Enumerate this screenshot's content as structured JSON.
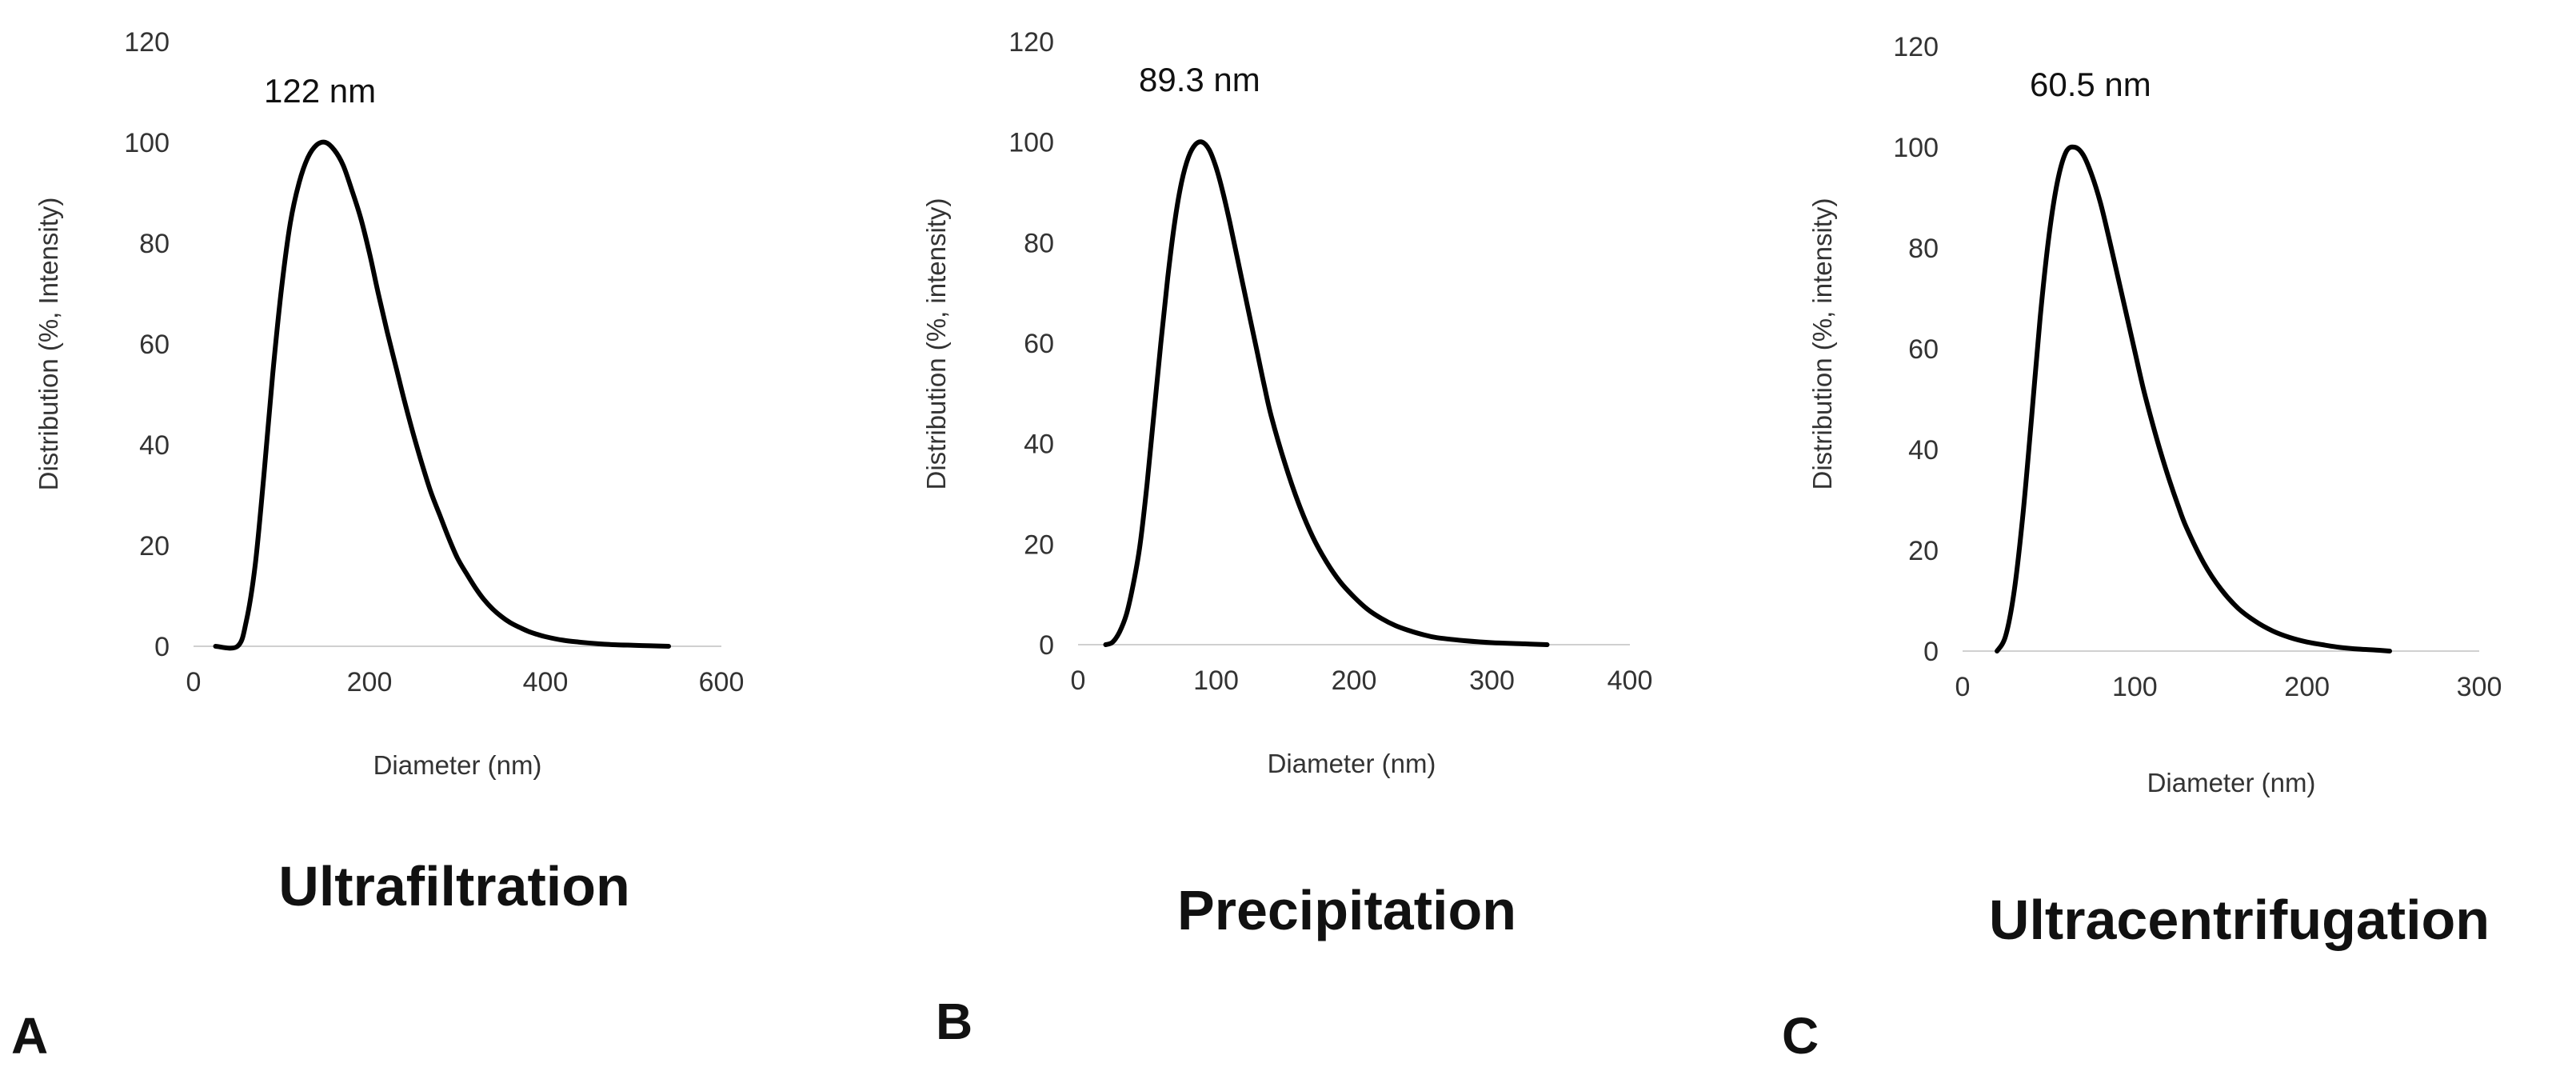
{
  "chart_data": [
    {
      "type": "line",
      "panel_label": "A",
      "method": "Ultrafiltration",
      "annotation": "122 nm",
      "xlabel": "Diameter (nm)",
      "ylabel": "Distribution (%, Intensity)",
      "xlim": [
        0,
        600
      ],
      "ylim": [
        0,
        120
      ],
      "xticks": [
        0,
        200,
        400,
        600
      ],
      "yticks": [
        0,
        20,
        40,
        60,
        80,
        100,
        120
      ],
      "grid": false,
      "series": [
        {
          "x": [
            25,
            50,
            60,
            70,
            80,
            90,
            100,
            110,
            120,
            130,
            140,
            150,
            160,
            170,
            180,
            190,
            200,
            210,
            220,
            230,
            240,
            250,
            260,
            270,
            280,
            290,
            300,
            310,
            320,
            330,
            340,
            350,
            360,
            370,
            380,
            390,
            400,
            420,
            440,
            460,
            480,
            500,
            520,
            540
          ],
          "y": [
            0,
            0,
            5,
            16,
            34,
            54,
            71,
            84,
            92,
            97,
            99.5,
            100,
            98.5,
            95.5,
            90.5,
            85,
            78,
            70,
            62.5,
            55.5,
            48.5,
            42,
            36,
            30.5,
            26,
            21.5,
            17.5,
            14.5,
            11.7,
            9.3,
            7.4,
            5.9,
            4.7,
            3.8,
            3.0,
            2.4,
            1.9,
            1.2,
            0.8,
            0.5,
            0.3,
            0.2,
            0.1,
            0
          ]
        }
      ]
    },
    {
      "type": "line",
      "panel_label": "B",
      "method": "Precipitation",
      "annotation": "89.3 nm",
      "xlabel": "Diameter (nm)",
      "ylabel": "Distribution (%, intensity)",
      "xlim": [
        0,
        400
      ],
      "ylim": [
        0,
        120
      ],
      "xticks": [
        0,
        100,
        200,
        300,
        400
      ],
      "yticks": [
        0,
        20,
        40,
        60,
        80,
        100,
        120
      ],
      "grid": false,
      "series": [
        {
          "x": [
            20,
            25,
            30,
            35,
            40,
            45,
            50,
            55,
            60,
            65,
            70,
            75,
            80,
            85,
            90,
            95,
            100,
            105,
            110,
            115,
            120,
            125,
            130,
            135,
            140,
            150,
            160,
            170,
            180,
            190,
            200,
            210,
            220,
            230,
            240,
            250,
            260,
            280,
            300,
            320,
            340
          ],
          "y": [
            0,
            0.5,
            2.5,
            6,
            12,
            20,
            32,
            46,
            60,
            73,
            84,
            92,
            97,
            99.5,
            100,
            98.5,
            95,
            90,
            84,
            77.5,
            71,
            64.5,
            58,
            51.5,
            45.5,
            36,
            28,
            21.5,
            16.5,
            12.5,
            9.5,
            7,
            5.2,
            3.8,
            2.8,
            2,
            1.4,
            0.8,
            0.4,
            0.2,
            0
          ]
        }
      ]
    },
    {
      "type": "line",
      "panel_label": "C",
      "method": "Ultracentrifugation",
      "annotation": "60.5 nm",
      "xlabel": "Diameter (nm)",
      "ylabel": "Distribution (%, intensity)",
      "xlim": [
        0,
        300
      ],
      "ylim": [
        0,
        120
      ],
      "xticks": [
        0,
        100,
        200,
        300
      ],
      "yticks": [
        0,
        20,
        40,
        60,
        80,
        100,
        120
      ],
      "grid": false,
      "series": [
        {
          "x": [
            20,
            25,
            30,
            35,
            40,
            45,
            50,
            55,
            60,
            65,
            70,
            75,
            80,
            85,
            90,
            95,
            100,
            105,
            110,
            115,
            120,
            125,
            130,
            140,
            150,
            160,
            170,
            180,
            190,
            200,
            210,
            220,
            230,
            240,
            248
          ],
          "y": [
            0,
            3,
            12,
            27,
            46,
            66,
            82,
            93,
            99,
            100,
            98.5,
            94.5,
            89,
            82,
            74.5,
            67,
            59.5,
            52,
            45.5,
            39.5,
            34,
            29,
            24.5,
            17.5,
            12.3,
            8.5,
            5.9,
            4.0,
            2.7,
            1.8,
            1.2,
            0.7,
            0.4,
            0.2,
            0
          ]
        }
      ]
    }
  ]
}
